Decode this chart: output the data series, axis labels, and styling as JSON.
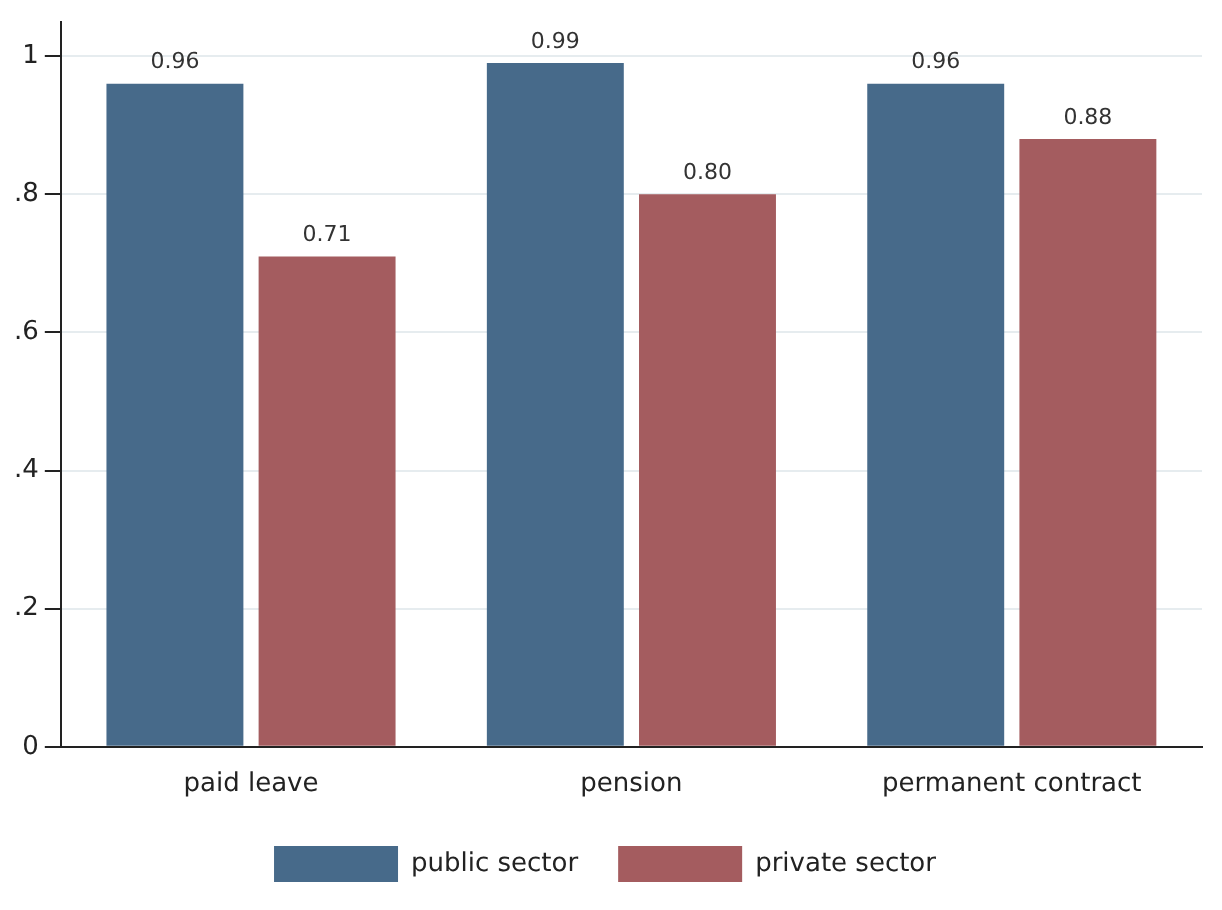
{
  "chart_data": {
    "type": "bar",
    "categories": [
      "paid leave",
      "pension",
      "permanent contract"
    ],
    "series": [
      {
        "name": "public sector",
        "color": "#476a8a",
        "values": [
          0.96,
          0.99,
          0.96
        ],
        "value_labels": [
          "0.96",
          "0.99",
          "0.96"
        ]
      },
      {
        "name": "private sector",
        "color": "#a45c5f",
        "values": [
          0.71,
          0.8,
          0.88
        ],
        "value_labels": [
          "0.71",
          "0.80",
          "0.88"
        ]
      }
    ],
    "ylim": [
      0,
      1.05
    ],
    "yticks": [
      0,
      {
        "value": 0.2,
        "label": ".2"
      },
      {
        "value": 0.4,
        "label": ".4"
      },
      {
        "value": 0.6,
        "label": ".6"
      },
      {
        "value": 0.8,
        "label": ".8"
      },
      1
    ],
    "grid": "y",
    "legend": "bottom"
  }
}
